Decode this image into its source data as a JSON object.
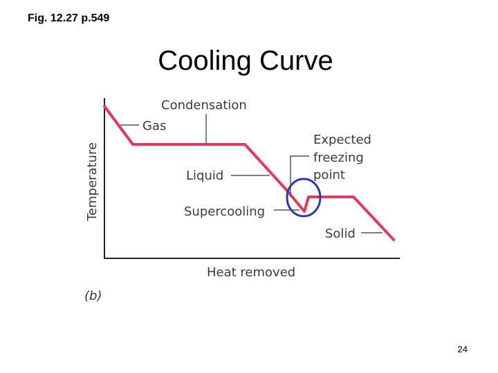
{
  "header": {
    "figure_ref": "Fig. 12.27 p.549",
    "title": "Cooling Curve"
  },
  "diagram": {
    "y_axis_label": "Temperature",
    "x_axis_label": "Heat removed",
    "panel_label": "(b)",
    "labels": {
      "condensation": "Condensation",
      "gas": "Gas",
      "liquid": "Liquid",
      "supercooling": "Supercooling",
      "expected_line1": "Expected",
      "expected_line2": "freezing",
      "expected_line3": "point",
      "solid": "Solid"
    },
    "colors": {
      "curve": "#e8375a",
      "highlight_circle": "#2b35b8",
      "axes": "#222222",
      "leader_lines": "#555555"
    }
  },
  "footer": {
    "page_number": "24"
  }
}
